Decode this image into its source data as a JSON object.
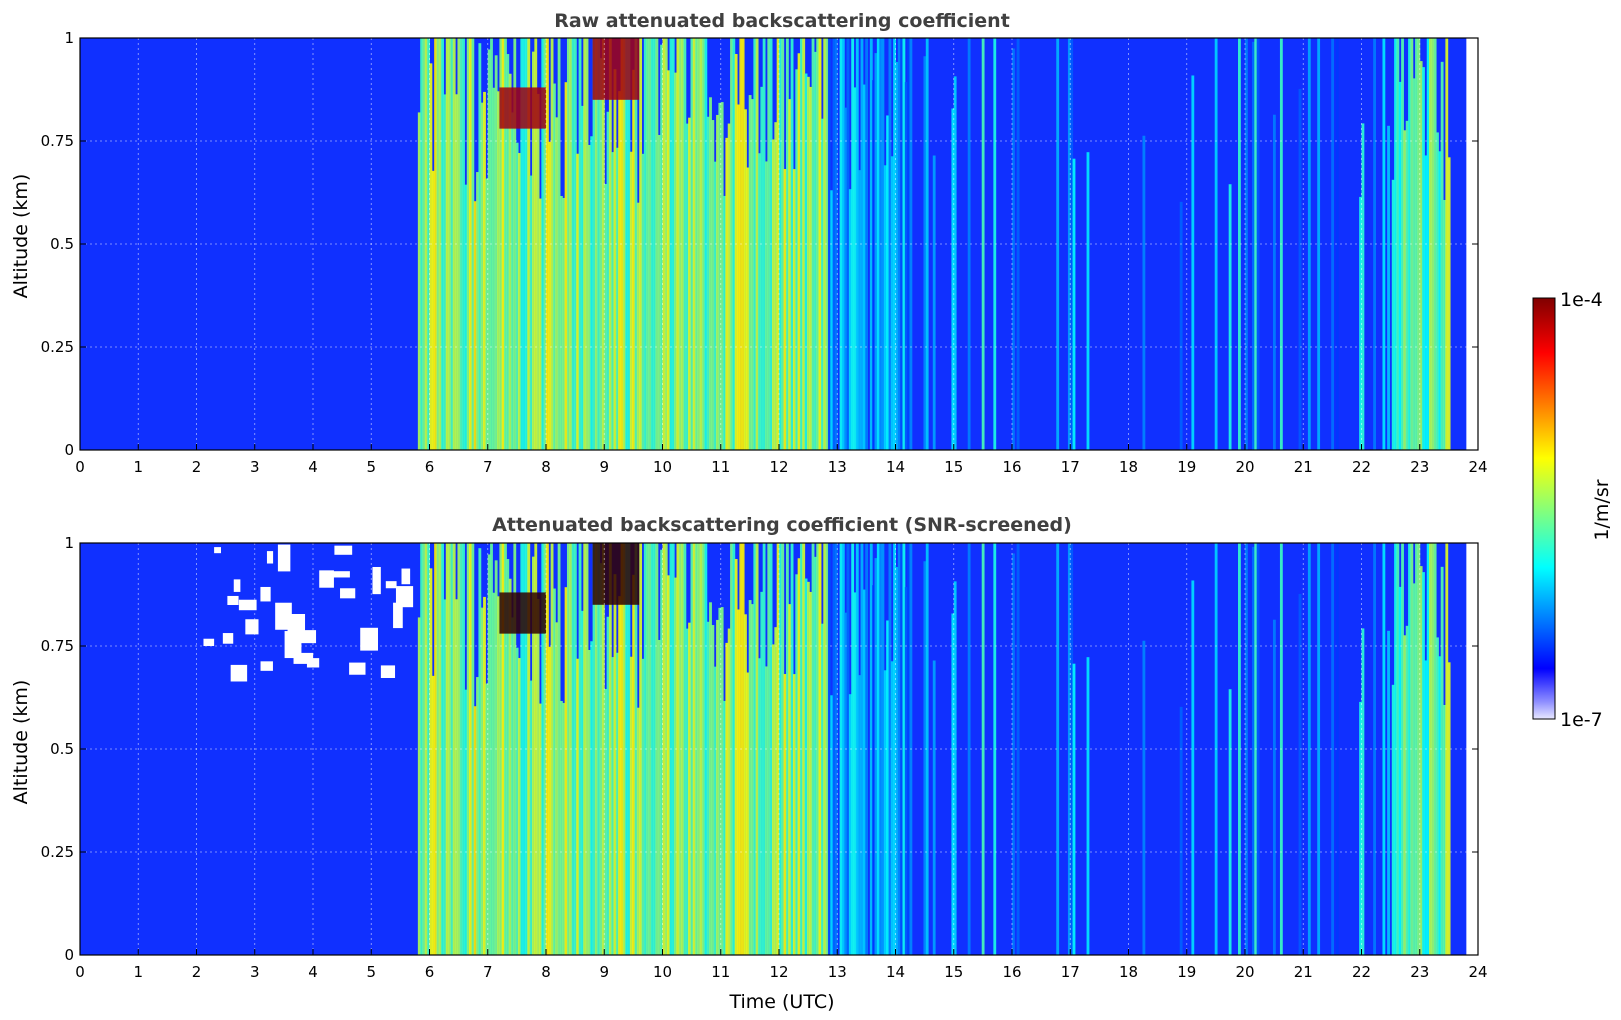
{
  "chart_data": [
    {
      "type": "heatmap",
      "title": "Raw attenuated backscattering coefficient",
      "xlabel": "",
      "ylabel": "Altitude (km)",
      "xlim": [
        0,
        24
      ],
      "ylim": [
        0,
        1
      ],
      "x_ticks": [
        "0",
        "1",
        "2",
        "3",
        "4",
        "5",
        "6",
        "7",
        "8",
        "9",
        "10",
        "11",
        "12",
        "13",
        "14",
        "15",
        "16",
        "17",
        "18",
        "19",
        "20",
        "21",
        "22",
        "23",
        "24"
      ],
      "y_ticks": [
        "0",
        "0.25",
        "0.5",
        "0.75",
        "1"
      ],
      "grid": true,
      "screened": false,
      "colormap": "jet",
      "log_scale": true,
      "data_end_time": 23.8,
      "regions": [
        {
          "x_range": [
            0,
            5.8
          ],
          "altitude_range": [
            0,
            1
          ],
          "level": "low"
        },
        {
          "x_range": [
            5.8,
            12.8
          ],
          "altitude_range": [
            0,
            1
          ],
          "level": "moderate-high (vertical streaks)"
        },
        {
          "x_range": [
            7.2,
            8.0
          ],
          "altitude_range": [
            0.78,
            0.88
          ],
          "level": "very high"
        },
        {
          "x_range": [
            8.8,
            9.6
          ],
          "altitude_range": [
            0.85,
            1
          ],
          "level": "very high"
        },
        {
          "x_range": [
            12.8,
            22.5
          ],
          "altitude_range": [
            0,
            1
          ],
          "level": "low with streaks"
        },
        {
          "x_range": [
            22.5,
            23.5
          ],
          "altitude_range": [
            0,
            1
          ],
          "level": "moderate-high"
        }
      ]
    },
    {
      "type": "heatmap",
      "title": "Attenuated backscattering coefficient (SNR-screened)",
      "xlabel": "Time (UTC)",
      "ylabel": "Altitude (km)",
      "xlim": [
        0,
        24
      ],
      "ylim": [
        0,
        1
      ],
      "x_ticks": [
        "0",
        "1",
        "2",
        "3",
        "4",
        "5",
        "6",
        "7",
        "8",
        "9",
        "10",
        "11",
        "12",
        "13",
        "14",
        "15",
        "16",
        "17",
        "18",
        "19",
        "20",
        "21",
        "22",
        "23",
        "24"
      ],
      "y_ticks": [
        "0",
        "0.25",
        "0.5",
        "0.75",
        "1"
      ],
      "grid": true,
      "screened": true,
      "colormap": "jet",
      "log_scale": true,
      "data_end_time": 23.8,
      "regions": [
        {
          "x_range": [
            0,
            5.8
          ],
          "altitude_range": [
            0,
            1
          ],
          "level": "low, screened gaps aloft"
        },
        {
          "x_range": [
            5.8,
            12.8
          ],
          "altitude_range": [
            0,
            1
          ],
          "level": "moderate-high (vertical streaks)"
        },
        {
          "x_range": [
            7.2,
            8.0
          ],
          "altitude_range": [
            0.78,
            0.88
          ],
          "level": "very high"
        },
        {
          "x_range": [
            8.8,
            9.6
          ],
          "altitude_range": [
            0.85,
            1
          ],
          "level": "very high"
        },
        {
          "x_range": [
            12.8,
            22.5
          ],
          "altitude_range": [
            0,
            1
          ],
          "level": "low with streaks"
        },
        {
          "x_range": [
            22.5,
            23.5
          ],
          "altitude_range": [
            0,
            1
          ],
          "level": "moderate-high"
        }
      ]
    }
  ],
  "colorbar": {
    "label": "1/m/sr",
    "min_label": "1e-7",
    "max_label": "1e-4",
    "min": 1e-07,
    "max": 0.0001,
    "scale": "log",
    "colormap": "jet"
  }
}
